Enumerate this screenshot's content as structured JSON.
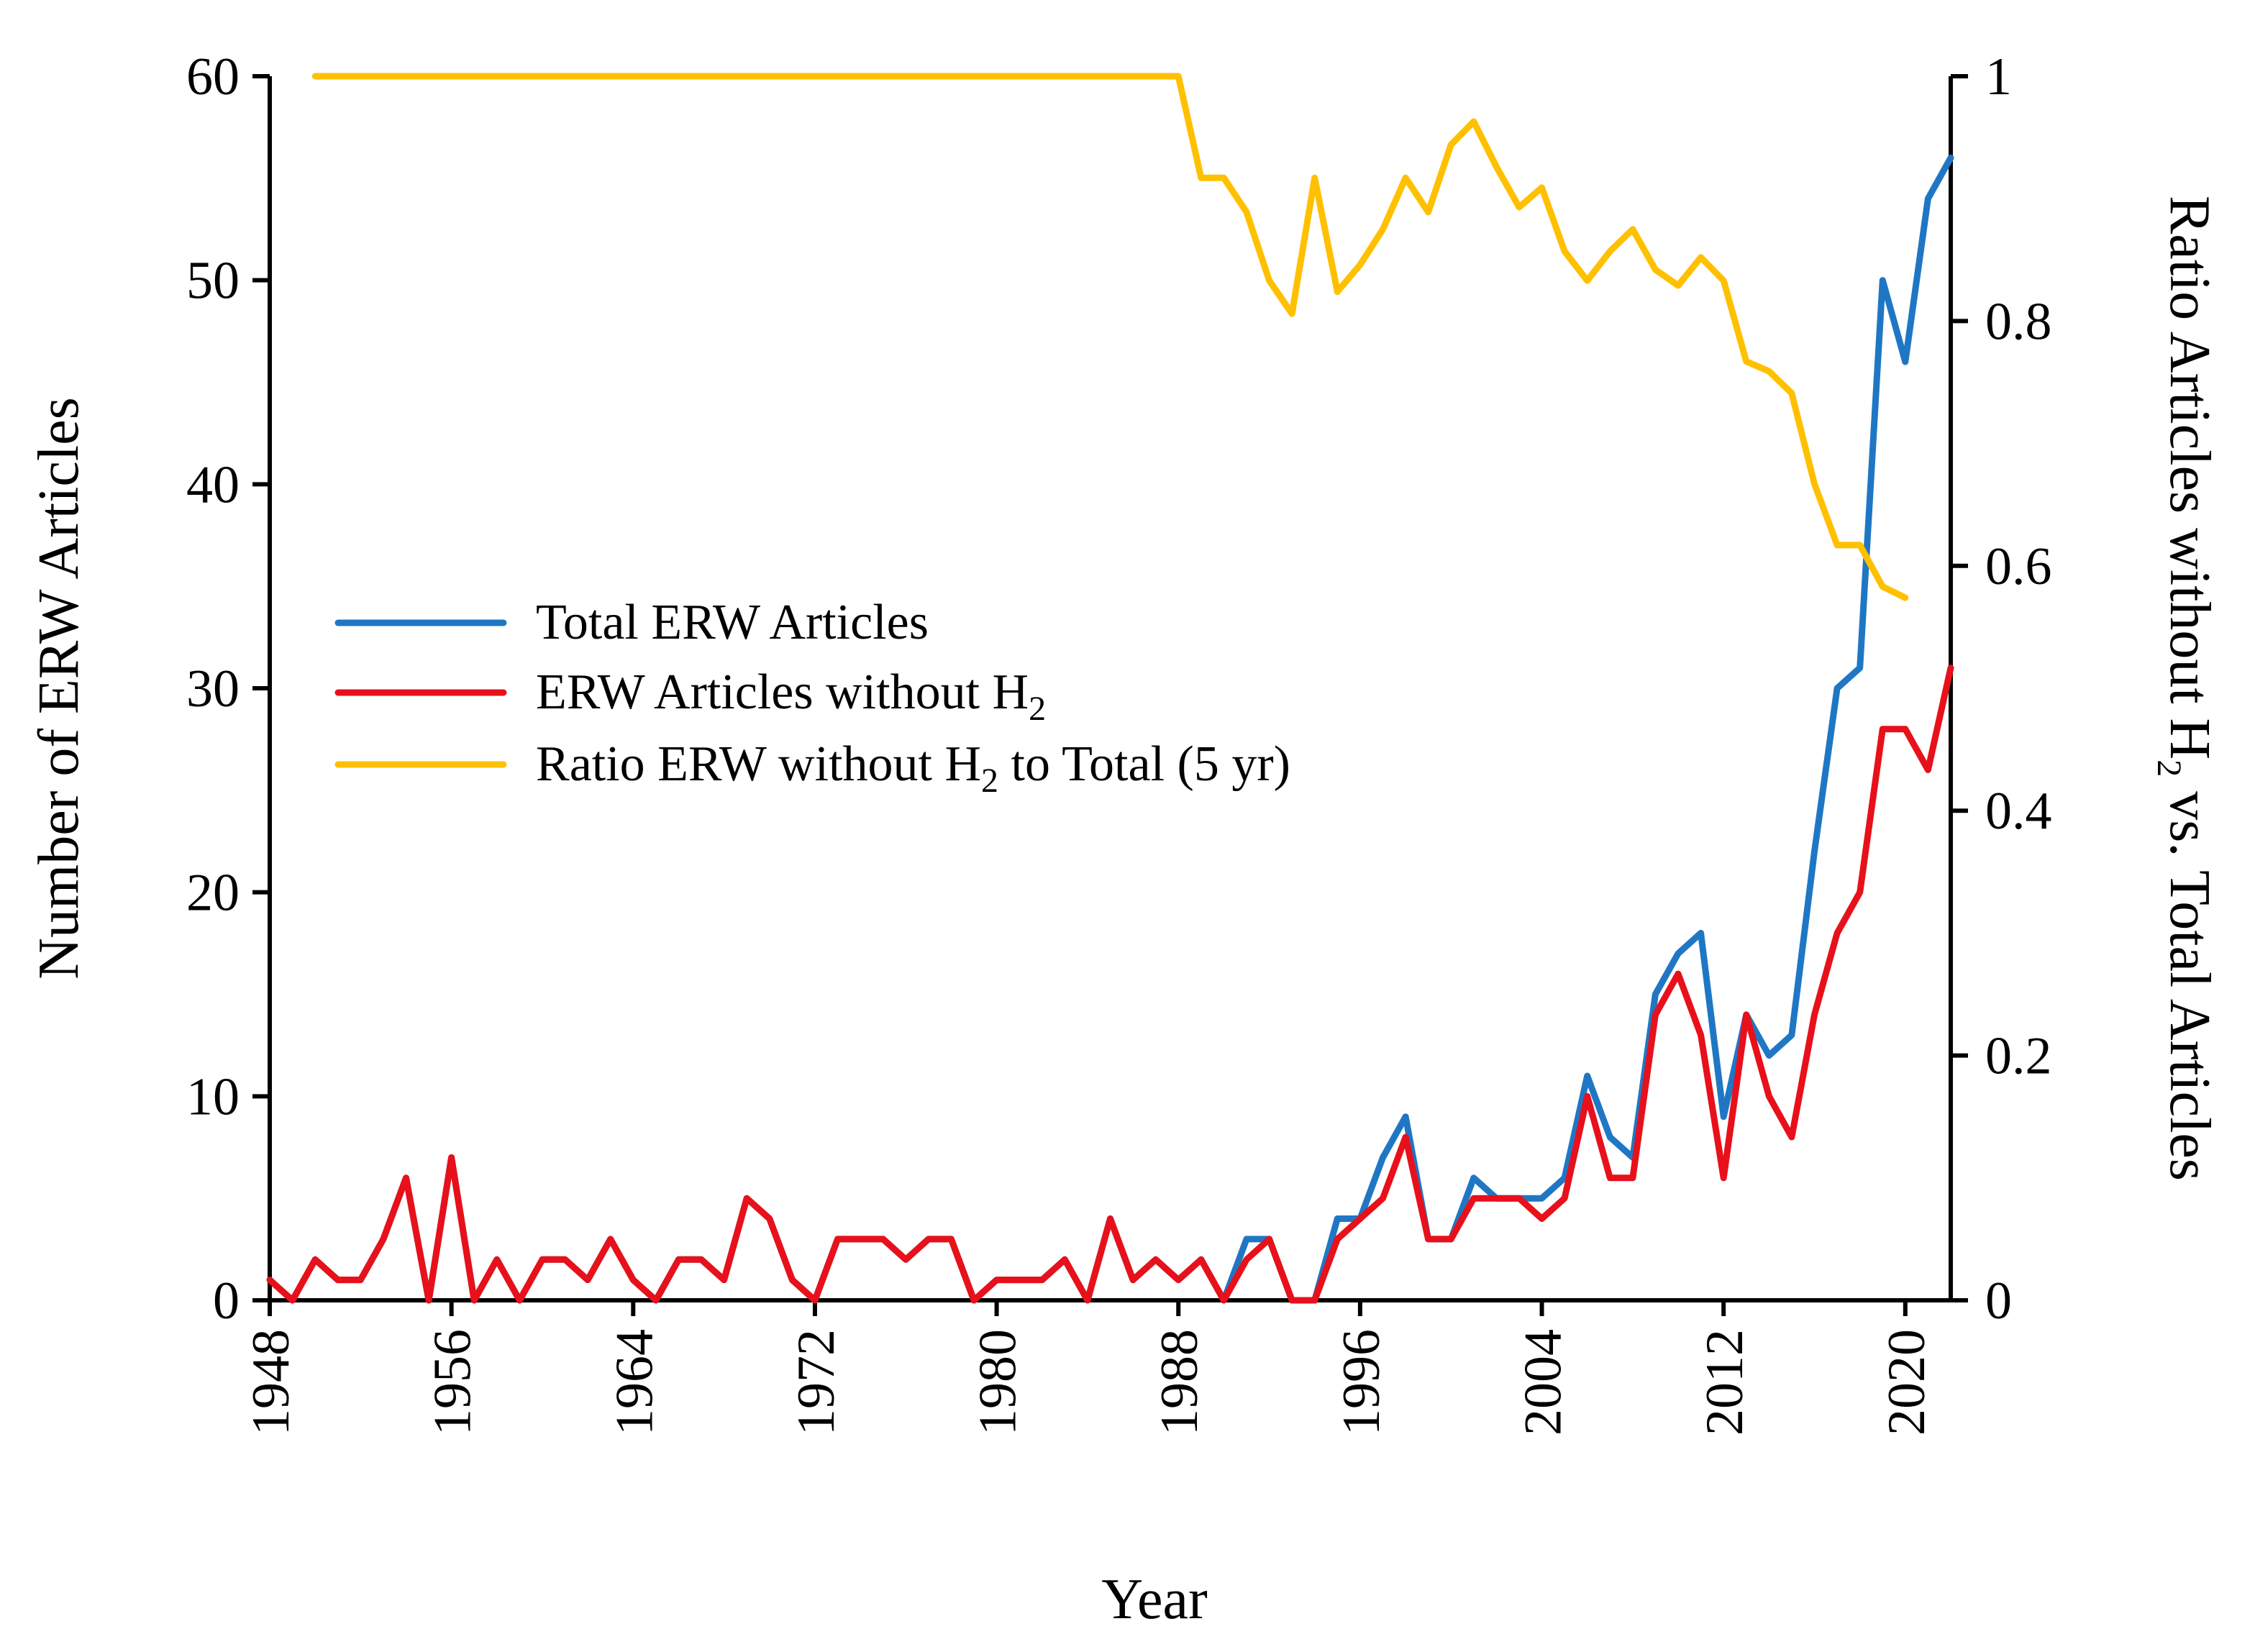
{
  "chart_data": {
    "type": "line",
    "xlabel": "Year",
    "ylabel": "Number of ERW Articles",
    "y2label_parts": [
      "Ratio Articles without H",
      "2",
      " vs. Total Articles"
    ],
    "xlim": [
      1948,
      2022
    ],
    "ylim": [
      0,
      60
    ],
    "y2lim": [
      0,
      1
    ],
    "x_ticks": [
      1948,
      1956,
      1964,
      1972,
      1980,
      1988,
      1996,
      2004,
      2012,
      2020
    ],
    "y_ticks": [
      0,
      10,
      20,
      30,
      40,
      50,
      60
    ],
    "y2_ticks": [
      0,
      0.2,
      0.4,
      0.6,
      0.8,
      1
    ],
    "y2_tick_labels": [
      "0",
      "0.2",
      "0.4",
      "0.6",
      "0.8",
      "1"
    ],
    "legend_position": "center-left",
    "series": [
      {
        "name": "Total ERW Articles",
        "legend_parts": [
          "Total ERW Articles"
        ],
        "color": "#1f77c4",
        "axis": "left",
        "x_start": 1948,
        "values": [
          1,
          0,
          2,
          1,
          1,
          3,
          6,
          0,
          7,
          0,
          2,
          0,
          2,
          2,
          1,
          3,
          1,
          0,
          2,
          2,
          1,
          5,
          4,
          1,
          0,
          3,
          3,
          3,
          2,
          3,
          3,
          0,
          1,
          1,
          1,
          2,
          0,
          4,
          1,
          2,
          1,
          2,
          0,
          3,
          3,
          0,
          0,
          4,
          4,
          7,
          9,
          3,
          3,
          6,
          5,
          5,
          5,
          6,
          11,
          8,
          7,
          15,
          17,
          18,
          9,
          14,
          12,
          13,
          22,
          30,
          31,
          50,
          46,
          54,
          56
        ]
      },
      {
        "name": "ERW Articles without H2",
        "legend_parts": [
          "ERW Articles without H",
          "2",
          ""
        ],
        "color": "#e8101a",
        "axis": "left",
        "x_start": 1948,
        "values": [
          1,
          0,
          2,
          1,
          1,
          3,
          6,
          0,
          7,
          0,
          2,
          0,
          2,
          2,
          1,
          3,
          1,
          0,
          2,
          2,
          1,
          5,
          4,
          1,
          0,
          3,
          3,
          3,
          2,
          3,
          3,
          0,
          1,
          1,
          1,
          2,
          0,
          4,
          1,
          2,
          1,
          2,
          0,
          2,
          3,
          0,
          0,
          3,
          4,
          5,
          8,
          3,
          3,
          5,
          5,
          5,
          4,
          5,
          10,
          6,
          6,
          14,
          16,
          13,
          6,
          14,
          10,
          8,
          14,
          18,
          20,
          28,
          28,
          26,
          31
        ]
      },
      {
        "name": "Ratio ERW without H2 to Total (5 yr)",
        "legend_parts": [
          "Ratio ERW without H",
          "2",
          " to Total (5 yr)"
        ],
        "color": "#ffc000",
        "axis": "right",
        "x_start": 1950,
        "values": [
          1,
          1,
          1,
          1,
          1,
          1,
          1,
          1,
          1,
          1,
          1,
          1,
          1,
          1,
          1,
          1,
          1,
          1,
          1,
          1,
          1,
          1,
          1,
          1,
          1,
          1,
          1,
          1,
          1,
          1,
          1,
          1,
          1,
          1,
          1,
          1,
          1,
          1,
          1,
          0.917,
          0.917,
          0.889,
          0.833,
          0.806,
          0.917,
          0.824,
          0.846,
          0.875,
          0.917,
          0.889,
          0.944,
          0.963,
          0.926,
          0.893,
          0.909,
          0.857,
          0.833,
          0.857,
          0.875,
          0.842,
          0.829,
          0.852,
          0.833,
          0.767,
          0.759,
          0.741,
          0.667,
          0.617,
          0.617,
          0.583,
          0.574
        ]
      }
    ]
  }
}
